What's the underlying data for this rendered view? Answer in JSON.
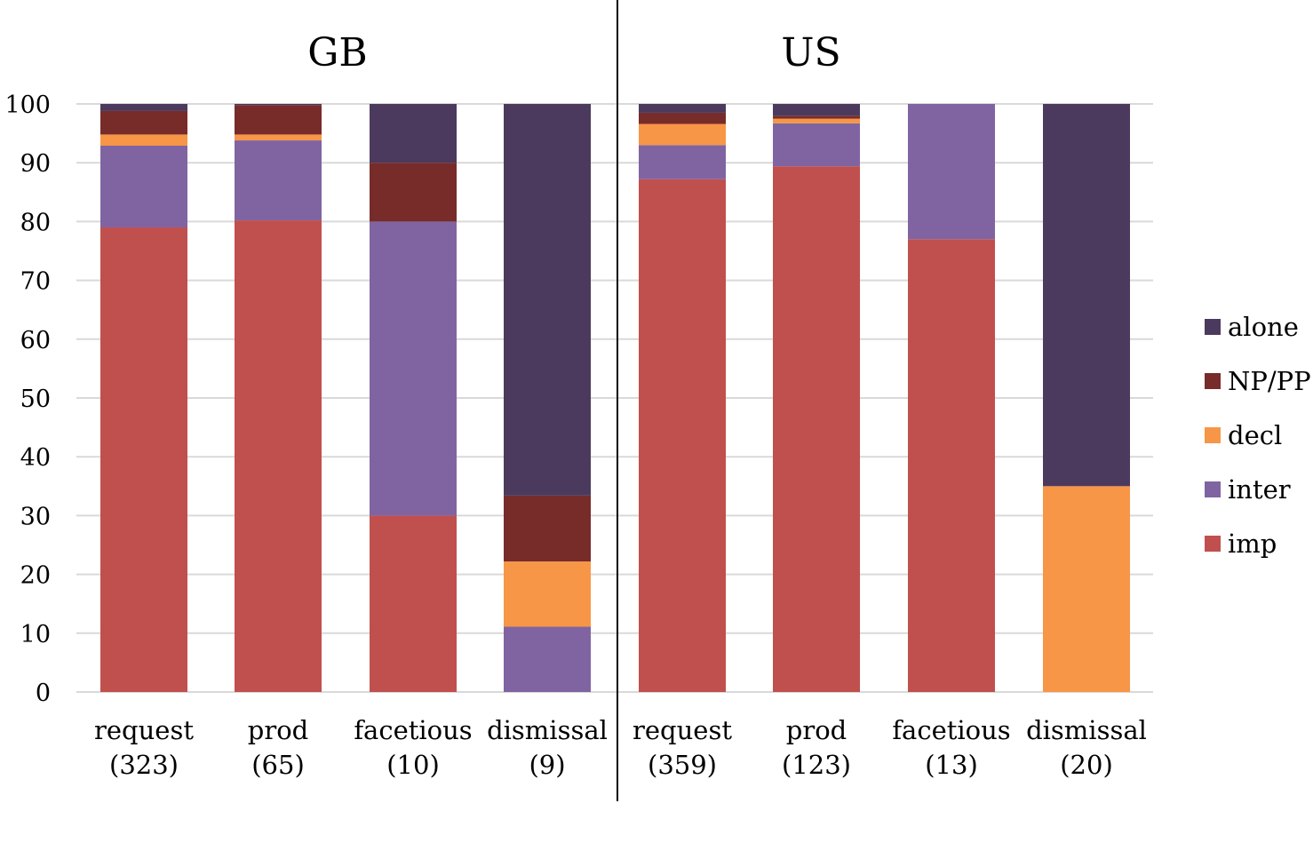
{
  "chart_data": {
    "type": "bar",
    "stacked": true,
    "title": "",
    "xlabel": "",
    "ylabel": "",
    "ylim": [
      0,
      100
    ],
    "yticks": [
      "0",
      "10",
      "20",
      "30",
      "40",
      "50",
      "60",
      "70",
      "80",
      "90",
      "100"
    ],
    "grid": true,
    "legend_position": "right",
    "groups": [
      {
        "title": "GB",
        "categories": [
          {
            "name": "request",
            "n": "(323)"
          },
          {
            "name": "prod",
            "n": "(65)"
          },
          {
            "name": "facetious",
            "n": "(10)"
          },
          {
            "name": "dismissal",
            "n": "(9)"
          }
        ]
      },
      {
        "title": "US",
        "categories": [
          {
            "name": "request",
            "n": "(359)"
          },
          {
            "name": "prod",
            "n": "(123)"
          },
          {
            "name": "facetious",
            "n": "(13)"
          },
          {
            "name": "dismissal",
            "n": "(20)"
          }
        ]
      }
    ],
    "series": [
      {
        "name": "imp",
        "color": "#c0504d",
        "values": [
          79,
          80.2,
          30,
          0,
          87.2,
          89.4,
          77,
          0
        ]
      },
      {
        "name": "inter",
        "color": "#8064a2",
        "values": [
          13.9,
          13.6,
          50,
          11.1,
          5.8,
          7.3,
          23,
          0
        ]
      },
      {
        "name": "decl",
        "color": "#f79646",
        "values": [
          1.9,
          1.0,
          0,
          11.1,
          3.6,
          0.8,
          0,
          35
        ]
      },
      {
        "name": "NP/PP",
        "color": "#772c2a",
        "values": [
          4.0,
          5.0,
          10,
          11.2,
          1.9,
          0.5,
          0,
          0
        ]
      },
      {
        "name": "alone",
        "color": "#4b3a5e",
        "values": [
          1.2,
          0.2,
          10,
          66.6,
          1.5,
          2.0,
          0,
          65
        ]
      }
    ],
    "legend_order": [
      "alone",
      "NP/PP",
      "decl",
      "inter",
      "imp"
    ]
  }
}
